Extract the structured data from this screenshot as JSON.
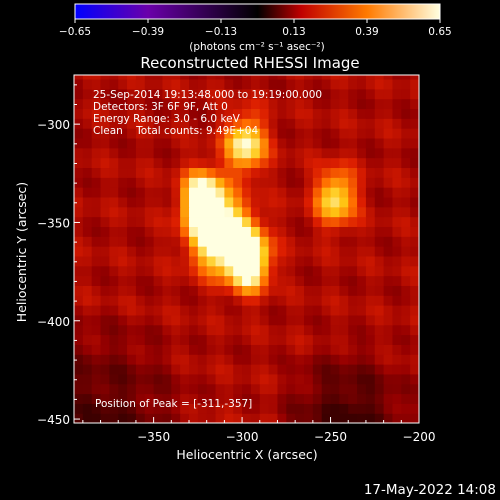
{
  "chart_data": {
    "type": "heatmap",
    "title": "Reconstructed RHESSI Image",
    "xlabel": "Heliocentric X (arcsec)",
    "ylabel": "Heliocentric Y (arcsec)",
    "xlim": [
      -395,
      -200
    ],
    "ylim": [
      -452,
      -275
    ],
    "x_ticks": [
      -350,
      -300,
      -250,
      -200
    ],
    "x_tick_labels": [
      "−350",
      "−300",
      "−250",
      "−200"
    ],
    "y_ticks": [
      -450,
      -400,
      -350,
      -300
    ],
    "y_tick_labels": [
      "−450",
      "−400",
      "−350",
      "−300"
    ],
    "colorbar": {
      "min": -0.65,
      "max": 0.65,
      "ticks": [
        -0.65,
        -0.39,
        -0.13,
        0.13,
        0.39,
        0.65
      ],
      "tick_labels": [
        "−0.65",
        "−0.39",
        "−0.13",
        "0.13",
        "0.39",
        "0.65"
      ],
      "label": "(photons cm⁻² s⁻¹ asec⁻²)",
      "colors": [
        "#0000ff",
        "#6a00aa",
        "#000000",
        "#ff0000",
        "#ffaa00",
        "#ffffe0"
      ]
    },
    "annotations": {
      "time_range": "25-Sep-2014 19:13:48.000 to 19:19:00.000",
      "detectors": "Detectors: 3F 6F 9F, Att 0",
      "energy_range": "Energy Range: 3.0 - 6.0 keV",
      "method_counts": "Clean    Total counts: 9.49E+04",
      "peak_position": "Position of Peak = [-311,-357]"
    },
    "sources": [
      {
        "x": -311,
        "y": -357,
        "value": 0.65
      },
      {
        "x": -322,
        "y": -338,
        "value": 0.6
      },
      {
        "x": -296,
        "y": -370,
        "value": 0.55
      },
      {
        "x": -298,
        "y": -310,
        "value": 0.45
      },
      {
        "x": -247,
        "y": -337,
        "value": 0.4
      }
    ],
    "background_level": 0.2
  },
  "footer": {
    "timestamp": "17-May-2022 14:08"
  }
}
